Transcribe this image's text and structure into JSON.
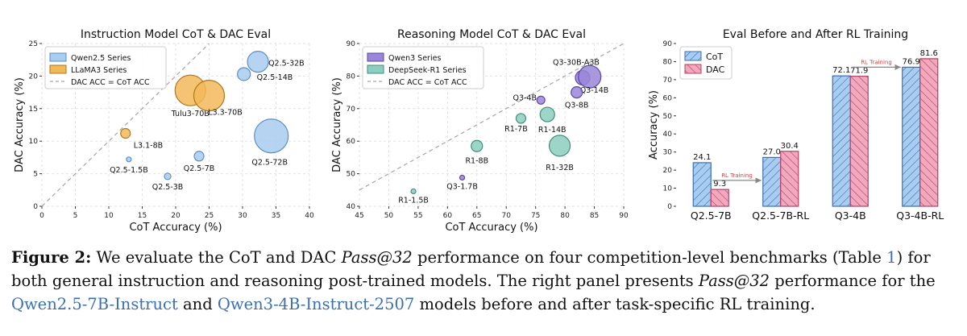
{
  "chart_data": [
    {
      "type": "scatter",
      "title": "Instruction Model CoT & DAC Eval",
      "xlabel": "CoT Accuracy (%)",
      "ylabel": "DAC Accuracy (%)",
      "xlim": [
        0,
        40
      ],
      "ylim": [
        0,
        25
      ],
      "xticks": [
        0,
        5,
        10,
        15,
        20,
        25,
        30,
        35,
        40
      ],
      "yticks": [
        0,
        5,
        10,
        15,
        20,
        25
      ],
      "grid": true,
      "legend_position": "top-left",
      "reference_line": "DAC ACC = CoT ACC",
      "series": [
        {
          "name": "Qwen2.5 Series",
          "color": "#a9cdf0",
          "edge": "#5a8fc7",
          "points": [
            {
              "label": "Q2.5-32B",
              "x": 32.3,
              "y": 22.2,
              "r": 13
            },
            {
              "label": "Q2.5-14B",
              "x": 30.2,
              "y": 20.3,
              "r": 8
            },
            {
              "label": "Q2.5-72B",
              "x": 34.3,
              "y": 10.8,
              "r": 21
            },
            {
              "label": "Q2.5-7B",
              "x": 23.5,
              "y": 7.7,
              "r": 6
            },
            {
              "label": "Q2.5-3B",
              "x": 18.8,
              "y": 4.6,
              "r": 4
            },
            {
              "label": "Q2.5-1.5B",
              "x": 13.0,
              "y": 7.2,
              "r": 3
            }
          ]
        },
        {
          "name": "LLaMA3 Series",
          "color": "#f2b95a",
          "edge": "#b07818",
          "points": [
            {
              "label": "Tulu3-70B",
              "x": 22.2,
              "y": 17.8,
              "r": 19
            },
            {
              "label": "L3.3-70B",
              "x": 25.0,
              "y": 17.0,
              "r": 19
            },
            {
              "label": "L3.1-8B",
              "x": 12.5,
              "y": 11.2,
              "r": 6
            }
          ]
        }
      ]
    },
    {
      "type": "scatter",
      "title": "Reasoning Model CoT & DAC Eval",
      "xlabel": "CoT Accuracy (%)",
      "ylabel": "DAC Accuracy (%)",
      "xlim": [
        45,
        90
      ],
      "ylim": [
        40,
        90
      ],
      "xticks": [
        45,
        50,
        55,
        60,
        65,
        70,
        75,
        80,
        85,
        90
      ],
      "yticks": [
        40,
        50,
        60,
        70,
        80,
        90
      ],
      "grid": true,
      "legend_position": "top-left",
      "reference_line": "DAC ACC = CoT ACC",
      "series": [
        {
          "name": "Qwen3 Series",
          "color": "#9a86d8",
          "edge": "#5b45a8",
          "points": [
            {
              "label": "Q3-30B-A3B",
              "x": 83.0,
              "y": 79.5,
              "r": 9
            },
            {
              "label": "Q3-14B",
              "x": 84.2,
              "y": 79.8,
              "r": 14
            },
            {
              "label": "Q3-8B",
              "x": 82.0,
              "y": 75.0,
              "r": 7
            },
            {
              "label": "Q3-4B",
              "x": 75.9,
              "y": 72.6,
              "r": 5
            },
            {
              "label": "Q3-1.7B",
              "x": 62.5,
              "y": 48.8,
              "r": 3
            }
          ]
        },
        {
          "name": "DeepSeek-R1 Series",
          "color": "#8ccfc0",
          "edge": "#3f8f7c",
          "points": [
            {
              "label": "R1-7B",
              "x": 72.5,
              "y": 67.0,
              "r": 6
            },
            {
              "label": "R1-14B",
              "x": 77.0,
              "y": 68.2,
              "r": 9
            },
            {
              "label": "R1-8B",
              "x": 65.0,
              "y": 58.5,
              "r": 7
            },
            {
              "label": "R1-32B",
              "x": 79.1,
              "y": 58.6,
              "r": 13
            },
            {
              "label": "R1-1.5B",
              "x": 54.2,
              "y": 44.6,
              "r": 3
            }
          ]
        }
      ]
    },
    {
      "type": "bar",
      "title": "Eval Before and After RL Training",
      "ylabel": "Accuracy (%)",
      "ylim": [
        0,
        90
      ],
      "yticks": [
        0,
        10,
        20,
        30,
        40,
        50,
        60,
        70,
        80,
        90
      ],
      "legend_position": "top-left",
      "categories": [
        "Q2.5-7B",
        "Q2.5-7B-RL",
        "Q3-4B",
        "Q3-4B-RL"
      ],
      "series": [
        {
          "name": "CoT",
          "color": "#a9cdf0",
          "edge": "#3d6fb0",
          "values": [
            24.1,
            27.0,
            72.1,
            76.9
          ],
          "value_labels": [
            "24.1",
            "27.0",
            "72.1",
            "76.9"
          ]
        },
        {
          "name": "DAC",
          "color": "#f2a8bd",
          "edge": "#b04468",
          "values": [
            9.3,
            30.4,
            71.9,
            81.6
          ],
          "value_labels": [
            "9.3",
            "30.4",
            "71.9",
            "81.6"
          ]
        }
      ],
      "annotations": [
        {
          "text": "RL Training",
          "from": 0,
          "to": 1
        },
        {
          "text": "RL Training",
          "from": 2,
          "to": 3
        }
      ]
    }
  ],
  "caption": {
    "figure_label": "Figure 2:",
    "part1": " We evaluate the CoT and DAC ",
    "pass_a": "Pass@32",
    "part2": " performance on four competition-level benchmarks (Table ",
    "table_ref": "1",
    "part3": ") for both general instruction and reasoning post-trained models. The right panel presents ",
    "pass_b": "Pass@32",
    "part4": " performance for the ",
    "model_a": "Qwen2.5-7B-Instruct",
    "part5": " and ",
    "model_b": "Qwen3-4B-Instruct-2507",
    "part6": " models before and after task-specific RL training."
  }
}
